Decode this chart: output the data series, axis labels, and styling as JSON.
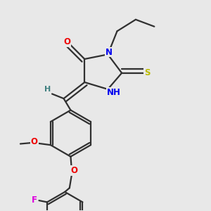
{
  "background_color": "#e8e8e8",
  "atoms": {
    "colors": {
      "C": "#303030",
      "N": "#0000ee",
      "O": "#ee0000",
      "S": "#bbbb00",
      "F": "#dd00dd",
      "H": "#408080"
    }
  },
  "bond_color": "#303030",
  "bond_width": 1.6,
  "font_size": 8.5
}
